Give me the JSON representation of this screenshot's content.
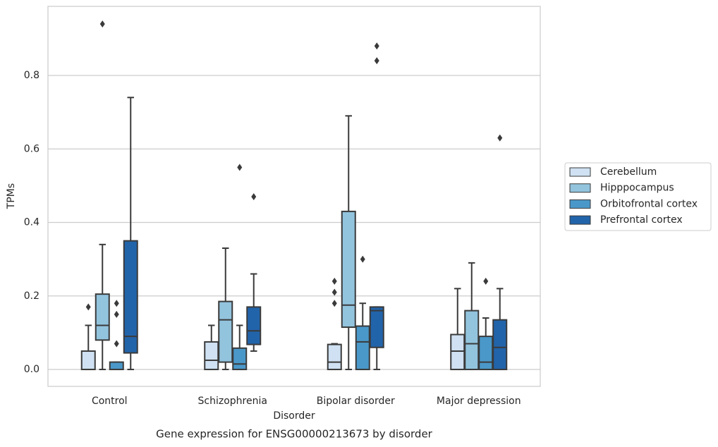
{
  "chart_data": {
    "type": "box",
    "title": "Gene expression for ENSG00000213673 by disorder",
    "x_label": "Disorder",
    "y_label": "TPMs",
    "categories": [
      "Control",
      "Schizophrenia",
      "Bipolar disorder",
      "Major depression"
    ],
    "ylim": [
      -0.046,
      0.988
    ],
    "yticks": [
      {
        "value": 0,
        "label": "0.0"
      },
      0.2,
      0.4,
      0.6,
      0.8
    ],
    "grid": true,
    "legend_position": "right",
    "series": [
      {
        "name": "Cerebellum",
        "color": "#cfe1f2",
        "min": [
          0,
          0,
          0,
          0
        ],
        "q1": [
          0,
          0,
          0,
          0
        ],
        "median": [
          0,
          0.025,
          0.02,
          0.05
        ],
        "q3": [
          0.05,
          0.075,
          0.068,
          0.095
        ],
        "max": [
          0.12,
          0.12,
          0.07,
          0.22
        ],
        "outliers": [
          [
            0.17
          ],
          [],
          [
            0.24,
            0.21,
            0.18
          ],
          []
        ]
      },
      {
        "name": "Hipppocampus",
        "color": "#93c4de",
        "min": [
          0,
          0,
          0,
          0
        ],
        "q1": [
          0.08,
          0.02,
          0.115,
          0
        ],
        "median": [
          0.12,
          0.135,
          0.175,
          0.07
        ],
        "q3": [
          0.205,
          0.185,
          0.43,
          0.16
        ],
        "max": [
          0.34,
          0.33,
          0.69,
          0.29
        ],
        "outliers": [
          [
            0.94
          ],
          [],
          [],
          []
        ]
      },
      {
        "name": "Orbitofrontal cortex",
        "color": "#4a98c9",
        "min": [
          0,
          0,
          0,
          0
        ],
        "q1": [
          0,
          0,
          0,
          0
        ],
        "median": [
          0,
          0.015,
          0.075,
          0.02
        ],
        "q3": [
          0.02,
          0.058,
          0.118,
          0.09
        ],
        "max": [
          0.02,
          0.12,
          0.18,
          0.14
        ],
        "outliers": [
          [
            0.18,
            0.15,
            0.07
          ],
          [
            0.55
          ],
          [
            0.3
          ],
          [
            0.24
          ]
        ]
      },
      {
        "name": "Prefrontal cortex",
        "color": "#2264aa",
        "min": [
          0,
          0.05,
          0,
          0
        ],
        "q1": [
          0.045,
          0.068,
          0.06,
          0
        ],
        "median": [
          0.09,
          0.105,
          0.16,
          0.06
        ],
        "q3": [
          0.35,
          0.17,
          0.17,
          0.135
        ],
        "max": [
          0.74,
          0.26,
          0.17,
          0.22
        ],
        "outliers": [
          [],
          [
            0.47
          ],
          [
            0.88,
            0.84
          ],
          [
            0.63
          ]
        ]
      }
    ]
  }
}
